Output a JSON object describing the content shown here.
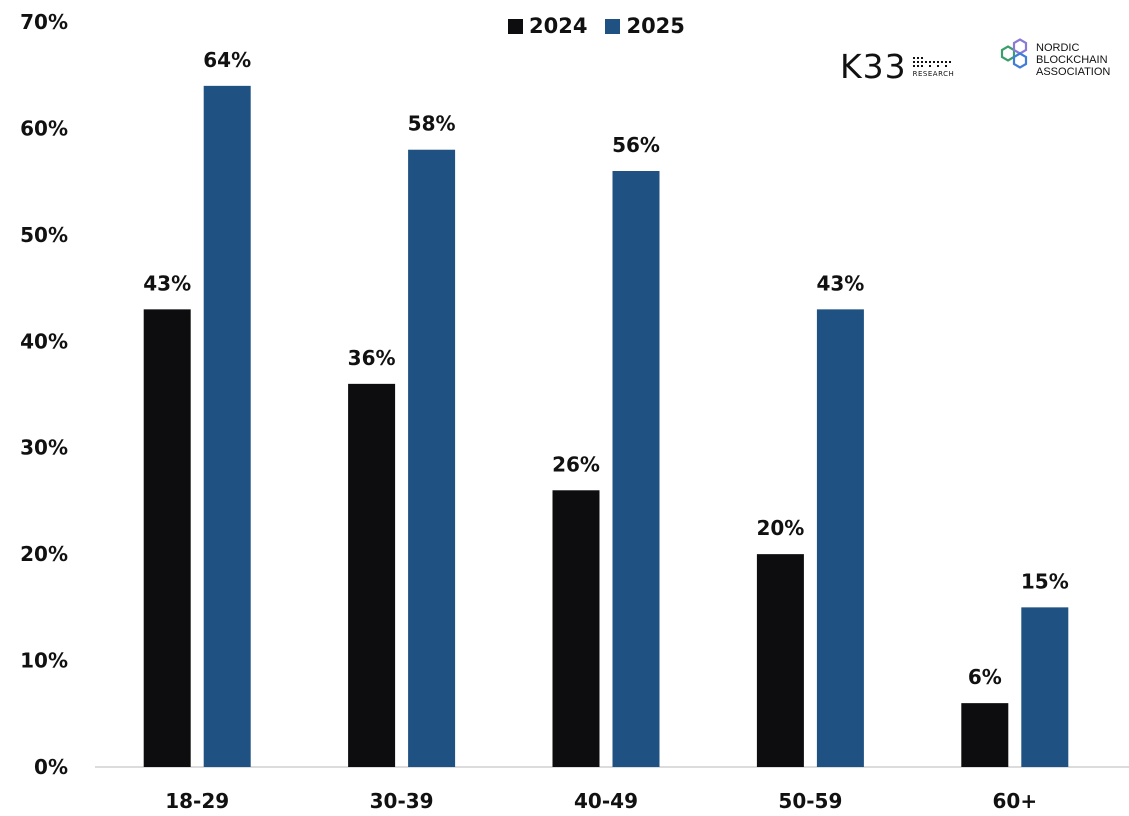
{
  "chart_data": {
    "type": "bar",
    "categories": [
      "18-29",
      "30-39",
      "40-49",
      "50-59",
      "60+"
    ],
    "series": [
      {
        "name": "2024",
        "values": [
          43,
          36,
          26,
          20,
          6
        ],
        "labels": [
          "43%",
          "36%",
          "26%",
          "20%",
          "6%"
        ],
        "color": "#0d0d0f"
      },
      {
        "name": "2025",
        "values": [
          64,
          58,
          56,
          43,
          15
        ],
        "labels": [
          "64%",
          "58%",
          "56%",
          "43%",
          "15%"
        ],
        "color": "#1f5282"
      }
    ],
    "ylim": [
      0,
      70
    ],
    "yticks": [
      "0%",
      "10%",
      "20%",
      "30%",
      "40%",
      "50%",
      "60%",
      "70%"
    ],
    "grid": false,
    "legend_position": "top-center"
  },
  "logos": {
    "k33": {
      "main": "K33",
      "sub": "RESEARCH"
    },
    "nba": {
      "lines": [
        "NORDIC",
        "BLOCKCHAIN",
        "ASSOCIATION"
      ]
    }
  }
}
